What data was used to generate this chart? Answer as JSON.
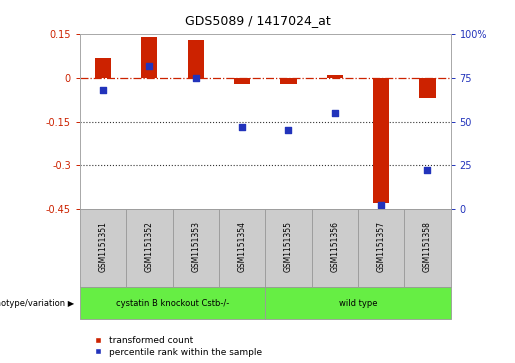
{
  "title": "GDS5089 / 1417024_at",
  "samples": [
    "GSM1151351",
    "GSM1151352",
    "GSM1151353",
    "GSM1151354",
    "GSM1151355",
    "GSM1151356",
    "GSM1151357",
    "GSM1151358"
  ],
  "transformed_count": [
    0.07,
    0.14,
    0.13,
    -0.02,
    -0.02,
    0.01,
    -0.43,
    -0.07
  ],
  "percentile_rank": [
    68,
    82,
    75,
    47,
    45,
    55,
    2,
    22
  ],
  "ylim_left": [
    -0.45,
    0.15
  ],
  "ylim_right": [
    0,
    100
  ],
  "yticks_left": [
    0.15,
    0,
    -0.15,
    -0.3,
    -0.45
  ],
  "yticks_right": [
    100,
    75,
    50,
    25,
    0
  ],
  "bar_color": "#cc2200",
  "dot_color": "#2233bb",
  "hline_color": "#cc2200",
  "dotted_line_color": "#333333",
  "bg_color": "#ffffff",
  "label_transformed": "transformed count",
  "label_percentile": "percentile rank within the sample",
  "genotype_label": "genotype/variation",
  "group1_label": "cystatin B knockout Cstb-/-",
  "group2_label": "wild type",
  "group_color": "#66ee44",
  "sample_box_color": "#cccccc",
  "sample_box_edge": "#999999"
}
